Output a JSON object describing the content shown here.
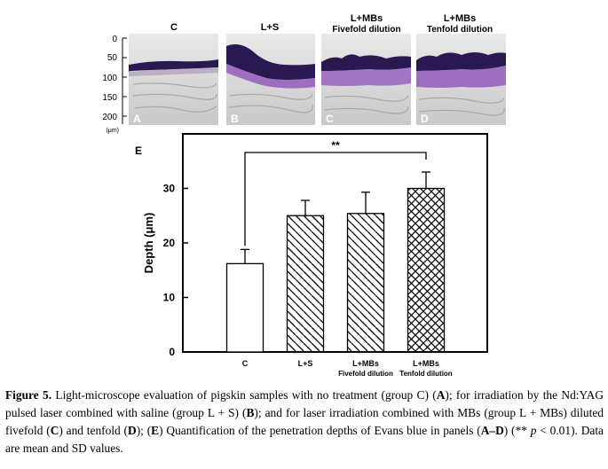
{
  "panels_top": [
    {
      "title": "C",
      "subtitle": "",
      "letter": "A"
    },
    {
      "title": "L+S",
      "subtitle": "",
      "letter": "B"
    },
    {
      "title": "L+MBs",
      "subtitle": "Fivefold dilution",
      "letter": "C"
    },
    {
      "title": "L+MBs",
      "subtitle": "Tenfold dilution",
      "letter": "D"
    }
  ],
  "micro_axis": {
    "ticks": [
      "0",
      "50",
      "100",
      "150",
      "200"
    ],
    "unit": "(μm)"
  },
  "colors": {
    "stain_dark": "#2a1850",
    "stain_purple": "#8a4bb8",
    "tissue": "#d8d8d8"
  },
  "chart_data": {
    "type": "bar",
    "panel_label": "E",
    "categories": [
      "C",
      "L+S",
      "L+MBs",
      "L+MBs"
    ],
    "category_sublabels": [
      "",
      "",
      "Fivefold dilution",
      "Tenfold dilution"
    ],
    "values": [
      16.2,
      25.0,
      25.4,
      30.0
    ],
    "errors": [
      2.6,
      2.8,
      3.9,
      3.0
    ],
    "patterns": [
      "none",
      "diagonal",
      "diagonal",
      "crosshatch"
    ],
    "ylabel": "Depth (μm)",
    "ylim": [
      0,
      40
    ],
    "yticks": [
      "0",
      "10",
      "20",
      "30"
    ],
    "significance": {
      "from": 0,
      "to": 3,
      "label": "**"
    },
    "grid": false
  },
  "caption": {
    "label": "Figure 5.",
    "t1": " Light-microscope evaluation of pigskin samples with no treatment (group C) (",
    "A": "A",
    "t2": "); for irradiation by the Nd:YAG pulsed laser combined with saline (group L + S) (",
    "B": "B",
    "t3": "); and for laser irradiation combined with MBs (group L + MBs) diluted fivefold (",
    "C": "C",
    "t4": ") and tenfold (",
    "D": "D",
    "t5": "); (",
    "E": "E",
    "t6": ") Quantification of the penetration depths of Evans blue in panels (",
    "AD": "A–D",
    "t7": ") (** ",
    "p": "p",
    "t8": " < 0.01). Data are mean and SD values."
  }
}
